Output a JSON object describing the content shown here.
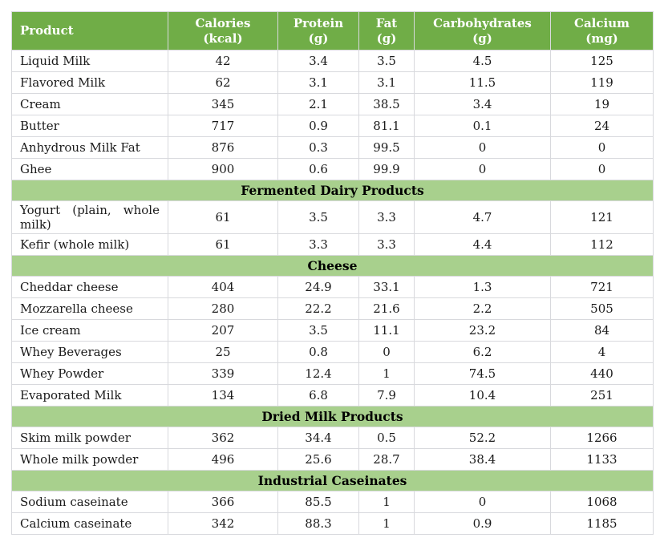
{
  "colors": {
    "header-bg": "#70AD47",
    "header-text": "#FFFFFF",
    "band-bg": "#A8D08D",
    "band-text": "#000000",
    "border": "#D8D9DD",
    "text": "#1A1A1A",
    "page-bg": "#FFFFFF"
  },
  "table": {
    "columns": [
      {
        "label": "Product",
        "unit": ""
      },
      {
        "label": "Calories",
        "unit": "(kcal)"
      },
      {
        "label": "Protein",
        "unit": "(g)"
      },
      {
        "label": "Fat",
        "unit": "(g)"
      },
      {
        "label": "Carbohydrates",
        "unit": "(g)"
      },
      {
        "label": "Calcium",
        "unit": "(mg)"
      }
    ],
    "sections": [
      {
        "title": "",
        "rows": [
          [
            "Liquid Milk",
            "42",
            "3.4",
            "3.5",
            "4.5",
            "125"
          ],
          [
            "Flavored Milk",
            "62",
            "3.1",
            "3.1",
            "11.5",
            "119"
          ],
          [
            "Cream",
            "345",
            "2.1",
            "38.5",
            "3.4",
            "19"
          ],
          [
            "Butter",
            "717",
            "0.9",
            "81.1",
            "0.1",
            "24"
          ],
          [
            "Anhydrous Milk Fat",
            "876",
            "0.3",
            "99.5",
            "0",
            "0"
          ],
          [
            "Ghee",
            "900",
            "0.6",
            "99.9",
            "0",
            "0"
          ]
        ]
      },
      {
        "title": "Fermented Dairy Products",
        "rows": [
          [
            "Yogurt (plain, whole milk)",
            "61",
            "3.5",
            "3.3",
            "4.7",
            "121"
          ],
          [
            "Kefir (whole milk)",
            "61",
            "3.3",
            "3.3",
            "4.4",
            "112"
          ]
        ]
      },
      {
        "title": "Cheese",
        "rows": [
          [
            "Cheddar cheese",
            "404",
            "24.9",
            "33.1",
            "1.3",
            "721"
          ],
          [
            "Mozzarella cheese",
            "280",
            "22.2",
            "21.6",
            "2.2",
            "505"
          ],
          [
            "Ice cream",
            "207",
            "3.5",
            "11.1",
            "23.2",
            "84"
          ],
          [
            "Whey Beverages",
            "25",
            "0.8",
            "0",
            "6.2",
            "4"
          ],
          [
            "Whey Powder",
            "339",
            "12.4",
            "1",
            "74.5",
            "440"
          ],
          [
            "Evaporated Milk",
            "134",
            "6.8",
            "7.9",
            "10.4",
            "251"
          ]
        ]
      },
      {
        "title": "Dried Milk Products",
        "rows": [
          [
            "Skim milk powder",
            "362",
            "34.4",
            "0.5",
            "52.2",
            "1266"
          ],
          [
            "Whole milk powder",
            "496",
            "25.6",
            "28.7",
            "38.4",
            "1133"
          ]
        ]
      },
      {
        "title": "Industrial Caseinates",
        "rows": [
          [
            "Sodium caseinate",
            "366",
            "85.5",
            "1",
            "0",
            "1068"
          ],
          [
            "Calcium caseinate",
            "342",
            "88.3",
            "1",
            "0.9",
            "1185"
          ]
        ]
      }
    ]
  }
}
